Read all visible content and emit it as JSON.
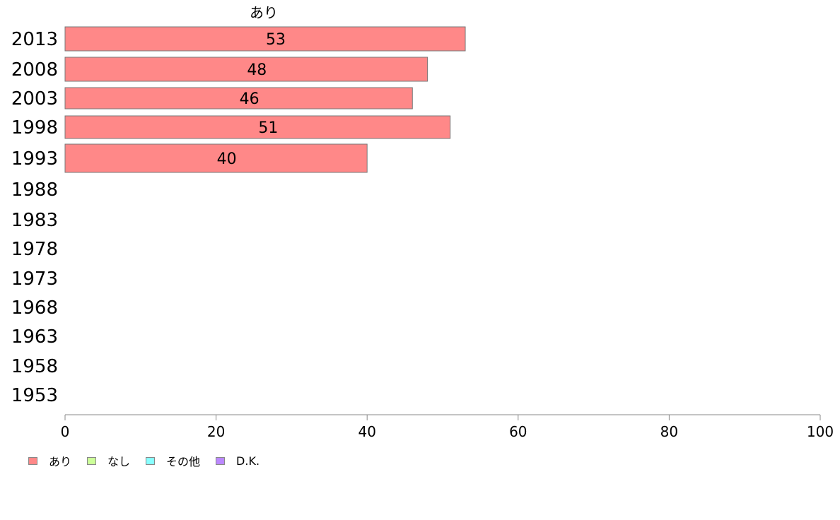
{
  "chart_data": {
    "type": "bar",
    "orientation": "horizontal",
    "stacked": true,
    "title": "あり",
    "categories": [
      "2013",
      "2008",
      "2003",
      "1998",
      "1993",
      "1988",
      "1983",
      "1978",
      "1973",
      "1968",
      "1963",
      "1958",
      "1953"
    ],
    "series": [
      {
        "name": "あり",
        "color": "#ff8888",
        "values": [
          53,
          48,
          46,
          51,
          40,
          null,
          null,
          null,
          null,
          null,
          null,
          null,
          null
        ]
      },
      {
        "name": "なし",
        "color": "#ccff99",
        "values": [
          null,
          null,
          null,
          null,
          null,
          null,
          null,
          null,
          null,
          null,
          null,
          null,
          null
        ]
      },
      {
        "name": "その他",
        "color": "#88ffff",
        "values": [
          null,
          null,
          null,
          null,
          null,
          null,
          null,
          null,
          null,
          null,
          null,
          null,
          null
        ]
      },
      {
        "name": "D.K.",
        "color": "#bb88ff",
        "values": [
          null,
          null,
          null,
          null,
          null,
          null,
          null,
          null,
          null,
          null,
          null,
          null,
          null
        ]
      }
    ],
    "data_labels": [
      "53",
      "48",
      "46",
      "51",
      "40"
    ],
    "xlim": [
      0,
      100
    ],
    "xticks": [
      "0",
      "20",
      "40",
      "60",
      "80",
      "100"
    ],
    "grid": false,
    "legend_position": "bottom-left"
  }
}
